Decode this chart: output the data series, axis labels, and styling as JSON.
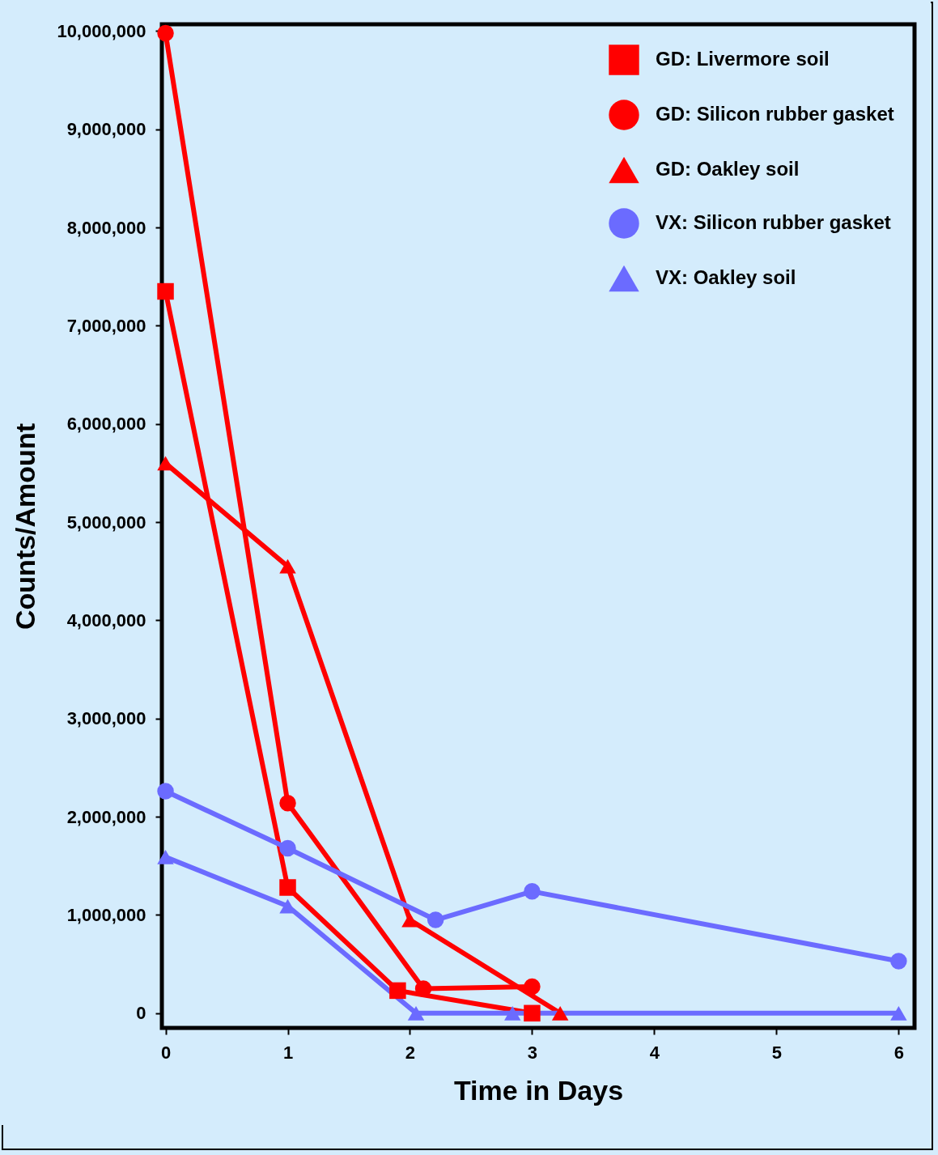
{
  "chart_data": {
    "type": "line",
    "xlabel": "Time in Days",
    "ylabel": "Counts/Amount",
    "xlim": [
      -0.03,
      6.13
    ],
    "xticks": [
      0,
      1,
      2,
      3,
      4,
      5,
      6
    ],
    "ylim": [
      -150000,
      10070000
    ],
    "yticks": [
      {
        "value": 0,
        "label": "0"
      },
      {
        "value": 1000000,
        "label": "1,000,000"
      },
      {
        "value": 2000000,
        "label": "2,000,000"
      },
      {
        "value": 3000000,
        "label": "3,000,000"
      },
      {
        "value": 4000000,
        "label": "4,000,000"
      },
      {
        "value": 5000000,
        "label": "5,000,000"
      },
      {
        "value": 6000000,
        "label": "6,000,000"
      },
      {
        "value": 7000000,
        "label": "7,000,000"
      },
      {
        "value": 8000000,
        "label": "8,000,000"
      },
      {
        "value": 9000000,
        "label": "9,000,000"
      },
      {
        "value": 10000000,
        "label": "10,000,000"
      }
    ],
    "grid": false,
    "legend": "top right",
    "line_style": "solid",
    "series": [
      {
        "name": "GD: Livermore soil",
        "color": "#ff0000",
        "marker": "square",
        "x": [
          0,
          1,
          1.9,
          3
        ],
        "values": [
          7350000,
          1280000,
          230000,
          0
        ]
      },
      {
        "name": "GD: Silicon rubber gasket",
        "color": "#ff0000",
        "marker": "circle",
        "x": [
          0,
          1,
          2.11,
          3
        ],
        "values": [
          9980000,
          2140000,
          250000,
          270000
        ]
      },
      {
        "name": "GD: Oakley soil",
        "color": "#ff0000",
        "marker": "triangle",
        "x": [
          0,
          1,
          2,
          3.23
        ],
        "values": [
          5600000,
          4550000,
          950000,
          0
        ]
      },
      {
        "name": "VX: Silicon rubber gasket",
        "color": "#6b6bff",
        "marker": "circle",
        "x": [
          0,
          1,
          2.21,
          3,
          6
        ],
        "values": [
          2260000,
          1680000,
          950000,
          1240000,
          530000
        ]
      },
      {
        "name": "VX: Oakley soil",
        "color": "#6b6bff",
        "marker": "triangle",
        "x": [
          0,
          1,
          2.05,
          2.84,
          6
        ],
        "values": [
          1590000,
          1090000,
          0,
          0,
          0
        ]
      }
    ]
  }
}
